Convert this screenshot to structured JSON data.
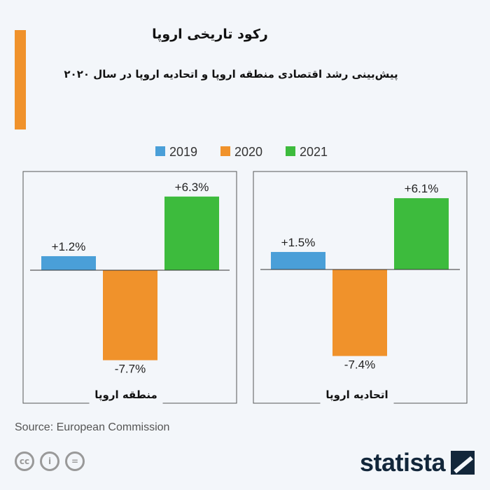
{
  "header": {
    "title": "رکود تاریخی اروپا",
    "subtitle": "پیش‌بینی رشد اقتصادی منطقه اروپا و اتحادیه اروپا در سال ۲۰۲۰"
  },
  "footer": {
    "source": "Source: European Commission",
    "brand": "statista",
    "cc_icons": [
      "cc-icon",
      "by-icon",
      "nd-icon"
    ]
  },
  "colors": {
    "2019": "#4a9fd8",
    "2020": "#f0922b",
    "2021": "#3dbb3d",
    "accent": "#f0922b"
  },
  "chart_data": [
    {
      "type": "bar",
      "title": "منطقه اروپا",
      "categories": [
        "2019",
        "2020",
        "2021"
      ],
      "values": [
        1.2,
        -7.7,
        6.3
      ],
      "labels": [
        "+1.2%",
        "-7.7%",
        "+6.3%"
      ],
      "unit": "%",
      "legend": [
        "2019",
        "2020",
        "2021"
      ],
      "legend_position": "top"
    },
    {
      "type": "bar",
      "title": "اتحادیه اروپا",
      "categories": [
        "2019",
        "2020",
        "2021"
      ],
      "values": [
        1.5,
        -7.4,
        6.1
      ],
      "labels": [
        "+1.5%",
        "-7.4%",
        "+6.1%"
      ],
      "unit": "%",
      "legend": [
        "2019",
        "2020",
        "2021"
      ],
      "legend_position": "top"
    }
  ]
}
